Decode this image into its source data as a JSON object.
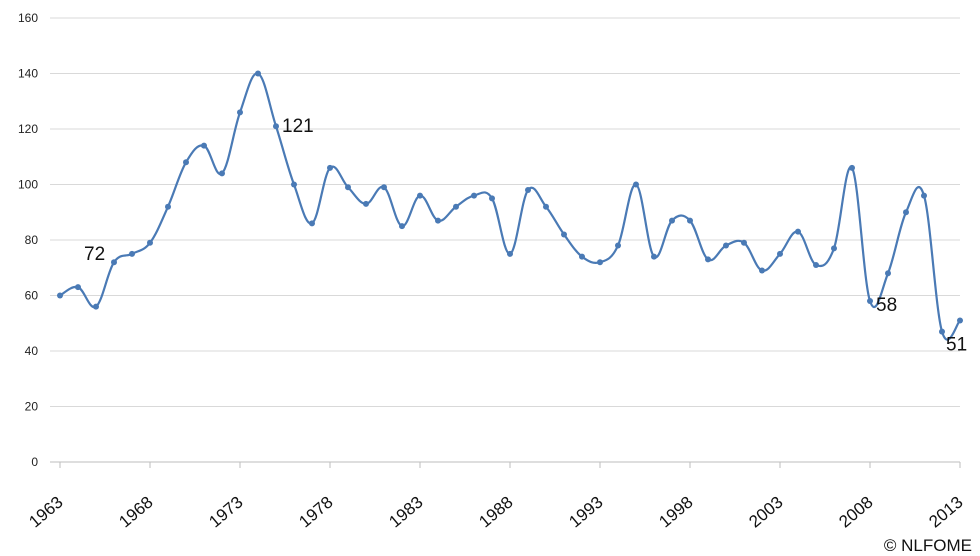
{
  "chart_data": {
    "type": "line",
    "title": "",
    "xlabel": "",
    "ylabel": "",
    "ylim": [
      0,
      160
    ],
    "yticks": [
      "0",
      "20",
      "40",
      "60",
      "80",
      "100",
      "120",
      "140",
      "160"
    ],
    "xlim": [
      1963,
      2013
    ],
    "xticks": [
      "1963",
      "1968",
      "1973",
      "1978",
      "1983",
      "1988",
      "1993",
      "1998",
      "2003",
      "2008",
      "2013"
    ],
    "grid": true,
    "legend": "none",
    "line_color": "#4a7ab5",
    "series": [
      {
        "x": [
          1963,
          1964,
          1965,
          1966,
          1967,
          1968,
          1969,
          1970,
          1971,
          1972,
          1973,
          1974,
          1975,
          1976,
          1977,
          1978,
          1979,
          1980,
          1981,
          1982,
          1983,
          1984,
          1985,
          1986,
          1987,
          1988,
          1989,
          1990,
          1991,
          1992,
          1993,
          1994,
          1995,
          1996,
          1997,
          1998,
          1999,
          2000,
          2001,
          2002,
          2003,
          2004,
          2005,
          2006,
          2007,
          2008,
          2009,
          2010,
          2011,
          2012,
          2013
        ],
        "values": [
          60,
          63,
          56,
          72,
          75,
          79,
          92,
          108,
          114,
          104,
          126,
          140,
          121,
          100,
          86,
          106,
          99,
          93,
          99,
          85,
          96,
          87,
          92,
          96,
          95,
          75,
          98,
          92,
          82,
          74,
          72,
          78,
          100,
          74,
          87,
          87,
          73,
          78,
          79,
          69,
          75,
          83,
          71,
          77,
          106,
          58,
          68,
          90,
          96,
          47,
          51
        ]
      }
    ],
    "annotations": [
      {
        "x": 1966,
        "y": 72,
        "text": "72"
      },
      {
        "x": 1975,
        "y": 121,
        "text": "121"
      },
      {
        "x": 2008,
        "y": 58,
        "text": "58"
      },
      {
        "x": 2013,
        "y": 51,
        "text": "51"
      }
    ]
  },
  "footer": {
    "copyright": "© NLFOME"
  }
}
